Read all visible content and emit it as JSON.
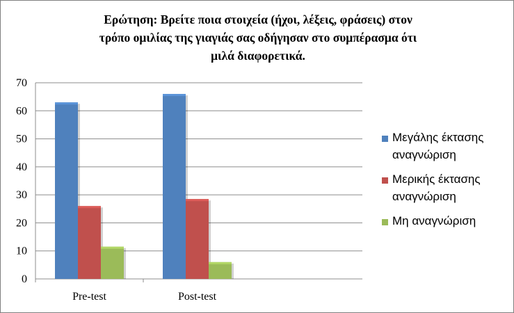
{
  "chart_data": {
    "type": "bar",
    "title_lines": [
      "Ερώτηση: Βρείτε ποια στοιχεία (ήχοι, λέξεις, φράσεις) στον",
      "τρόπο ομιλίας της γιαγιάς σας οδήγησαν στο συμπέρασμα ότι",
      "μιλά διαφορετικά."
    ],
    "categories": [
      "Pre-test",
      "Post-test"
    ],
    "series": [
      {
        "name": "Μεγάλης έκτασης αναγνώριση",
        "legend_lines": [
          "Μεγάλης έκτασης",
          "αναγνώριση"
        ],
        "values": [
          63,
          66
        ],
        "color": "#4f81bd"
      },
      {
        "name": "Μερικής έκτασης αναγνώριση",
        "legend_lines": [
          "Μερικής έκτασης",
          "αναγνώριση"
        ],
        "values": [
          26,
          28.5
        ],
        "color": "#c0504d"
      },
      {
        "name": "Μη αναγνώριση",
        "legend_lines": [
          "Μη αναγνώριση"
        ],
        "values": [
          11.5,
          6
        ],
        "color": "#9bbb59"
      }
    ],
    "ylim": [
      0,
      70
    ],
    "yticks": [
      0,
      10,
      20,
      30,
      40,
      50,
      60,
      70
    ],
    "grid": true,
    "legend_position": "right",
    "xlabel": "",
    "ylabel": ""
  }
}
